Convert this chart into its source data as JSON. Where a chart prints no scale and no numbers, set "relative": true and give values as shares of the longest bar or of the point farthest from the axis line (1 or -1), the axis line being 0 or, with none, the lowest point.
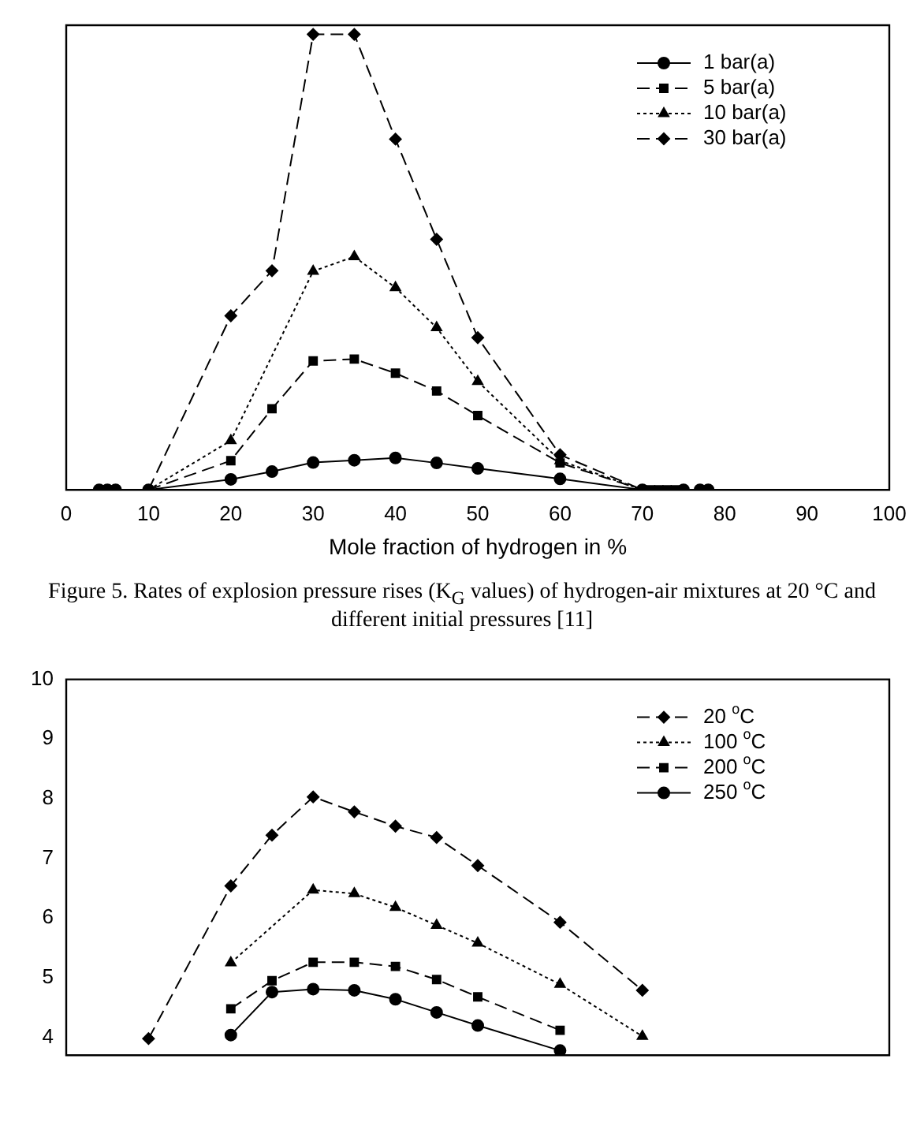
{
  "chart_data": [
    {
      "type": "line",
      "relative": true,
      "xlabel": "Mole fraction of hydrogen in %",
      "xlim": [
        0,
        100
      ],
      "xticks": [
        0,
        10,
        20,
        30,
        40,
        50,
        60,
        70,
        80,
        90,
        100
      ],
      "legend": "top right",
      "grid": false,
      "annotations": [
        "Figure 5. Rates of explosion pressure rises (K$_{G}$ values) of hydrogen-air mixtures at 20 °C and different initial pressures [11]"
      ],
      "series": [
        {
          "name": "1 bar(a)",
          "color": "#000000",
          "marker": "circle",
          "line_style": "solid",
          "x": [
            4,
            5,
            6,
            10,
            20,
            25,
            30,
            35,
            40,
            45,
            50,
            60,
            70,
            75,
            77,
            78
          ],
          "values": [
            0,
            0,
            0,
            0,
            0.023,
            0.04,
            0.06,
            0.065,
            0.07,
            0.059,
            0.047,
            0.024,
            0,
            0,
            0,
            0
          ]
        },
        {
          "name": "5 bar(a)",
          "color": "#000000",
          "marker": "square",
          "line_style": "dashed",
          "x": [
            10,
            20,
            25,
            30,
            35,
            40,
            45,
            50,
            60,
            70,
            71,
            72,
            73,
            74
          ],
          "values": [
            0,
            0.064,
            0.178,
            0.283,
            0.287,
            0.256,
            0.217,
            0.163,
            0.059,
            0,
            0,
            0,
            0,
            0
          ]
        },
        {
          "name": "10 bar(a)",
          "color": "#000000",
          "marker": "triangle",
          "line_style": "dotted",
          "x": [
            10,
            20,
            30,
            35,
            40,
            45,
            50,
            60,
            70
          ],
          "values": [
            0,
            0.108,
            0.48,
            0.512,
            0.444,
            0.356,
            0.238,
            0.064,
            0
          ]
        },
        {
          "name": "30 bar(a)",
          "color": "#000000",
          "marker": "diamond",
          "line_style": "dashed",
          "x": [
            10,
            20,
            25,
            30,
            35,
            40,
            45,
            50,
            60,
            70
          ],
          "values": [
            0,
            0.382,
            0.481,
            1,
            1,
            0.77,
            0.55,
            0.334,
            0.077,
            0
          ]
        }
      ]
    },
    {
      "type": "line",
      "xlim": [
        0,
        100
      ],
      "ylim": [
        3.7,
        10
      ],
      "yticks": [
        4,
        5,
        6,
        7,
        8,
        9,
        10
      ],
      "tick_labels": "y",
      "legend": "top right",
      "grid": false,
      "series": [
        {
          "name": "20 $^{o}$C",
          "color": "#000000",
          "marker": "diamond",
          "line_style": "dashed",
          "x": [
            10,
            20,
            25,
            30,
            35,
            40,
            45,
            50,
            60,
            70
          ],
          "values": [
            3.98,
            6.54,
            7.39,
            8.03,
            7.78,
            7.54,
            7.35,
            6.88,
            5.93,
            4.79
          ]
        },
        {
          "name": "100 $^{o}$C",
          "color": "#000000",
          "marker": "triangle",
          "line_style": "dotted",
          "x": [
            20,
            30,
            35,
            40,
            45,
            50,
            60,
            70
          ],
          "values": [
            5.25,
            6.47,
            6.41,
            6.18,
            5.88,
            5.58,
            4.89,
            4.02
          ]
        },
        {
          "name": "200 $^{o}$C",
          "color": "#000000",
          "marker": "square",
          "line_style": "dashed",
          "x": [
            20,
            25,
            30,
            35,
            40,
            45,
            50,
            60
          ],
          "values": [
            4.48,
            4.95,
            5.26,
            5.26,
            5.19,
            4.97,
            4.68,
            4.12
          ]
        },
        {
          "name": "250 $^{o}$C",
          "color": "#000000",
          "marker": "circle",
          "line_style": "solid",
          "x": [
            20,
            25,
            30,
            35,
            40,
            45,
            50,
            60
          ],
          "values": [
            4.04,
            4.76,
            4.81,
            4.79,
            4.64,
            4.42,
            4.2,
            3.78
          ]
        }
      ]
    }
  ]
}
